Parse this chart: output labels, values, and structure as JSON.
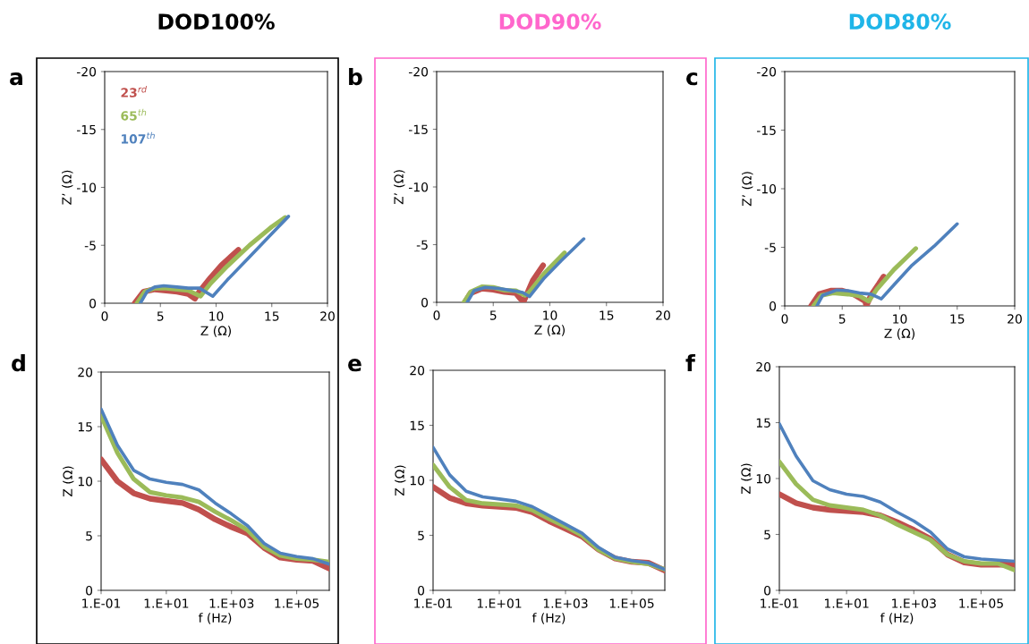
{
  "chart_data": [
    {
      "type": "line",
      "title": "DOD100%",
      "xlabel": "Z (Ω)",
      "ylabel": "Z’ (Ω)",
      "annotations": [
        "a"
      ],
      "xlim": [
        0,
        20
      ],
      "xticks": [
        0,
        5,
        10,
        15,
        20
      ],
      "ylim": [
        0,
        -20
      ],
      "yticks": [
        0,
        -5,
        -10,
        -15,
        -20
      ],
      "grid": false,
      "legend": "top left",
      "marker": "none",
      "line_style": "solid",
      "series": [
        {
          "name": "23$^{rd}$",
          "color": "#c0504d",
          "x": [
            2.7,
            3.5,
            4.5,
            5.5,
            6.5,
            7.5,
            8.1,
            8.5,
            9.5,
            10.5,
            12
          ],
          "values": [
            0,
            -1.0,
            -1.2,
            -1.1,
            -1.0,
            -0.8,
            -0.4,
            -1.0,
            -2.2,
            -3.3,
            -4.6
          ]
        },
        {
          "name": "65$^{th}$",
          "color": "#9bbb59",
          "x": [
            2.9,
            3.6,
            4.5,
            5.5,
            6.5,
            7.5,
            8.6,
            9.5,
            11,
            13,
            15,
            16.2
          ],
          "values": [
            0,
            -1.0,
            -1.3,
            -1.3,
            -1.2,
            -1.1,
            -0.6,
            -1.7,
            -3.2,
            -5.0,
            -6.6,
            -7.4
          ]
        },
        {
          "name": "107$^{th}$",
          "color": "#4f81bd",
          "x": [
            3.2,
            3.8,
            4.5,
            5.3,
            6.5,
            7.5,
            8.5,
            9.7,
            11,
            13,
            15,
            16.5
          ],
          "values": [
            0,
            -1.0,
            -1.4,
            -1.5,
            -1.4,
            -1.3,
            -1.3,
            -0.6,
            -2.0,
            -4.0,
            -6.0,
            -7.5
          ]
        }
      ]
    },
    {
      "type": "line",
      "title": "DOD90%",
      "xlabel": "Z (Ω)",
      "ylabel": "Z’ (Ω)",
      "annotations": [
        "b"
      ],
      "xlim": [
        0,
        20
      ],
      "xticks": [
        0,
        5,
        10,
        15,
        20
      ],
      "ylim": [
        0,
        -20
      ],
      "yticks": [
        0,
        -5,
        -10,
        -15,
        -20
      ],
      "grid": false,
      "marker": "none",
      "line_style": "solid",
      "series": [
        {
          "color": "#c0504d",
          "x": [
            2.5,
            3,
            4,
            5,
            6,
            7,
            7.4,
            7.7,
            8.5,
            9.4
          ],
          "values": [
            0,
            -0.8,
            -1.2,
            -1.1,
            -0.9,
            -0.8,
            -0.3,
            -0.1,
            -1.9,
            -3.2
          ]
        },
        {
          "color": "#9bbb59",
          "x": [
            2.4,
            3,
            4,
            5,
            6,
            7,
            7.8,
            8.2,
            9.5,
            11.3
          ],
          "values": [
            0,
            -0.9,
            -1.35,
            -1.3,
            -1.05,
            -1.0,
            -0.6,
            -0.9,
            -2.5,
            -4.3
          ]
        },
        {
          "color": "#4f81bd",
          "x": [
            2.7,
            3.3,
            4.3,
            5.5,
            6.8,
            7.6,
            8.2,
            9.5,
            11,
            13
          ],
          "values": [
            0,
            -1.0,
            -1.3,
            -1.2,
            -1.0,
            -0.85,
            -0.5,
            -2.1,
            -3.6,
            -5.5
          ]
        }
      ]
    },
    {
      "type": "line",
      "title": "DOD80%",
      "xlabel": "Z (Ω)",
      "ylabel": "Z’ (Ω)",
      "annotations": [
        "c"
      ],
      "xlim": [
        0,
        20
      ],
      "xticks": [
        0,
        5,
        10,
        15,
        20
      ],
      "ylim": [
        0,
        -20
      ],
      "yticks": [
        0,
        -5,
        -10,
        -15,
        -20
      ],
      "grid": false,
      "marker": "none",
      "line_style": "solid",
      "series": [
        {
          "color": "#c0504d",
          "x": [
            2.3,
            3,
            4,
            5,
            6,
            7,
            7.1,
            7.5,
            8.2,
            8.6
          ],
          "values": [
            0,
            -1.0,
            -1.3,
            -1.3,
            -1.0,
            -0.4,
            0,
            -0.9,
            -1.9,
            -2.5
          ]
        },
        {
          "color": "#9bbb59",
          "x": [
            2.5,
            3.2,
            4.2,
            5.5,
            6.5,
            7.3,
            8,
            9.5,
            11.4
          ],
          "values": [
            0,
            -0.9,
            -1.1,
            -1.0,
            -0.85,
            -0.4,
            -1.4,
            -3.1,
            -4.9
          ]
        },
        {
          "color": "#4f81bd",
          "x": [
            2.8,
            3.3,
            4.5,
            5.5,
            6.5,
            7.5,
            8.4,
            9.5,
            11,
            13,
            15
          ],
          "values": [
            0,
            -0.9,
            -1.35,
            -1.3,
            -1.1,
            -1.0,
            -0.6,
            -1.8,
            -3.4,
            -5.1,
            -7.0
          ]
        }
      ]
    },
    {
      "type": "line",
      "xlabel": "f (Hz)",
      "ylabel": "Z (Ω)",
      "annotations": [
        "d"
      ],
      "ylim": [
        0,
        20
      ],
      "yticks": [
        0,
        5,
        10,
        15,
        20
      ],
      "grid": false,
      "marker": "none",
      "line_style": "solid",
      "categories": [
        "1.E-01",
        null,
        null,
        null,
        "1.E+01",
        null,
        null,
        null,
        "1.E+03",
        null,
        null,
        null,
        "1.E+05",
        null,
        null
      ],
      "series": [
        {
          "color": "#c0504d",
          "values": [
            12.0,
            10.0,
            8.9,
            8.4,
            8.2,
            8.0,
            7.4,
            6.5,
            5.8,
            5.2,
            3.9,
            3.0,
            2.8,
            2.7,
            2.0
          ]
        },
        {
          "color": "#9bbb59",
          "values": [
            16.0,
            12.6,
            10.2,
            9.0,
            8.7,
            8.5,
            8.1,
            7.2,
            6.4,
            5.5,
            4.0,
            3.2,
            2.9,
            2.8,
            2.6
          ]
        },
        {
          "color": "#4f81bd",
          "values": [
            16.6,
            13.3,
            11.0,
            10.2,
            9.9,
            9.7,
            9.2,
            8.0,
            7.0,
            5.9,
            4.3,
            3.4,
            3.1,
            2.9,
            2.4
          ]
        }
      ]
    },
    {
      "type": "line",
      "xlabel": "f (Hz)",
      "ylabel": "Z (Ω)",
      "annotations": [
        "e"
      ],
      "ylim": [
        0,
        20
      ],
      "yticks": [
        0,
        5,
        10,
        15,
        20
      ],
      "grid": false,
      "marker": "none",
      "line_style": "solid",
      "categories": [
        "1.E-01",
        null,
        null,
        null,
        "1.E+01",
        null,
        null,
        null,
        "1.E+03",
        null,
        null,
        null,
        "1.E+05",
        null,
        null
      ],
      "series": [
        {
          "color": "#c0504d",
          "values": [
            9.4,
            8.4,
            7.9,
            7.7,
            7.6,
            7.5,
            7.1,
            6.3,
            5.6,
            4.9,
            3.7,
            2.9,
            2.6,
            2.5,
            1.8
          ]
        },
        {
          "color": "#9bbb59",
          "values": [
            11.4,
            9.4,
            8.2,
            7.9,
            7.8,
            7.7,
            7.3,
            6.5,
            5.8,
            5.0,
            3.7,
            2.9,
            2.6,
            2.4,
            1.9
          ]
        },
        {
          "color": "#4f81bd",
          "values": [
            13.0,
            10.5,
            9.0,
            8.5,
            8.3,
            8.1,
            7.6,
            6.8,
            6.0,
            5.2,
            3.9,
            3.0,
            2.7,
            2.5,
            1.9
          ]
        }
      ]
    },
    {
      "type": "line",
      "xlabel": "f (Hz)",
      "ylabel": "Z (Ω)",
      "annotations": [
        "f"
      ],
      "ylim": [
        0,
        20
      ],
      "yticks": [
        0,
        5,
        10,
        15,
        20
      ],
      "grid": false,
      "marker": "none",
      "line_style": "solid",
      "categories": [
        "1.E-01",
        null,
        null,
        null,
        "1.E+01",
        null,
        null,
        null,
        "1.E+03",
        null,
        null,
        null,
        "1.E+05",
        null,
        null
      ],
      "series": [
        {
          "color": "#c0504d",
          "values": [
            8.6,
            7.8,
            7.4,
            7.2,
            7.1,
            7.0,
            6.7,
            6.1,
            5.4,
            4.6,
            3.2,
            2.5,
            2.3,
            2.3,
            2.3
          ]
        },
        {
          "color": "#9bbb59",
          "values": [
            11.5,
            9.5,
            8.1,
            7.6,
            7.4,
            7.2,
            6.7,
            5.9,
            5.2,
            4.5,
            3.2,
            2.6,
            2.4,
            2.4,
            1.8
          ]
        },
        {
          "color": "#4f81bd",
          "values": [
            14.9,
            12.0,
            9.8,
            9.0,
            8.6,
            8.4,
            7.9,
            7.0,
            6.2,
            5.2,
            3.7,
            3.0,
            2.8,
            2.7,
            2.6
          ]
        }
      ]
    }
  ]
}
